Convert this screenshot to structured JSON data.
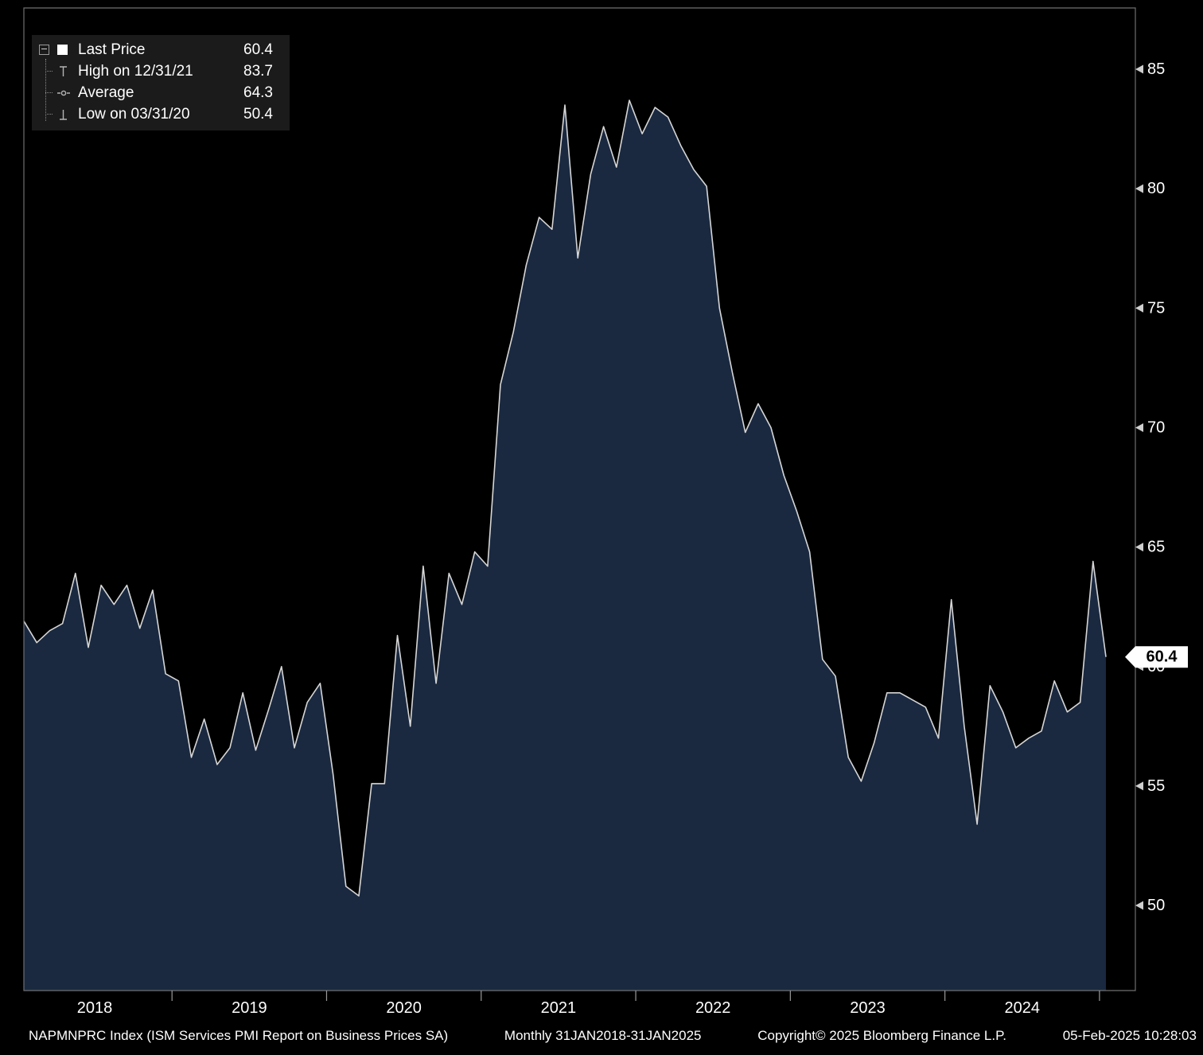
{
  "window": {
    "app": "Bloomberg Terminal chart",
    "security": "NAPMNPRC Index"
  },
  "legend": {
    "items": [
      {
        "marker": "last-price-square",
        "label": "Last Price",
        "value": "60.4"
      },
      {
        "marker": "high-tick",
        "label": "High on 12/31/21",
        "value": "83.7"
      },
      {
        "marker": "average-line",
        "label": "Average",
        "value": "64.3"
      },
      {
        "marker": "low-tick",
        "label": "Low on 03/31/20",
        "value": "50.4"
      }
    ]
  },
  "chart_data": {
    "type": "area",
    "title": "NAPMNPRC Index (ISM Services PMI Report on Business Prices SA)",
    "frequency": "Monthly",
    "x_start": "2018-01",
    "x_end": "2025-01",
    "xlabel": "",
    "ylabel": "",
    "ylim": [
      46.4,
      87.6
    ],
    "yticks": [
      50,
      55,
      60,
      65,
      70,
      75,
      80,
      85
    ],
    "year_labels": [
      "2018",
      "2019",
      "2020",
      "2021",
      "2022",
      "2023",
      "2024"
    ],
    "grid": false,
    "legend_position": "top-left",
    "last_price": 60.4,
    "high": {
      "date": "12/31/21",
      "value": 83.7
    },
    "low": {
      "date": "03/31/20",
      "value": 50.4
    },
    "average": 64.3,
    "values": [
      61.9,
      61.0,
      61.5,
      61.8,
      63.9,
      60.8,
      63.4,
      62.6,
      63.4,
      61.6,
      63.2,
      59.7,
      59.4,
      56.2,
      57.8,
      55.9,
      56.6,
      58.9,
      56.5,
      58.2,
      60.0,
      56.6,
      58.5,
      59.3,
      55.5,
      50.8,
      50.4,
      55.1,
      55.1,
      61.3,
      57.5,
      64.2,
      59.3,
      63.9,
      62.6,
      64.8,
      64.2,
      71.8,
      74.0,
      76.8,
      78.8,
      78.3,
      83.5,
      77.1,
      80.6,
      82.6,
      80.9,
      83.7,
      82.3,
      83.4,
      83.0,
      81.8,
      80.8,
      80.1,
      75.0,
      72.3,
      69.8,
      71.0,
      70.0,
      68.0,
      66.5,
      64.8,
      60.3,
      59.6,
      56.2,
      55.2,
      56.8,
      58.9,
      58.9,
      58.6,
      58.3,
      57.0,
      62.8,
      57.5,
      53.4,
      59.2,
      58.1,
      56.6,
      57.0,
      57.3,
      59.4,
      58.1,
      58.5,
      64.4,
      60.4
    ],
    "colors": {
      "background": "#000000",
      "area_fill": "#1a2940",
      "line": "#d6d6d6",
      "frame": "#6f6f6f",
      "tick_text": "#ffffff",
      "last_price_tag_bg": "#ffffff",
      "last_price_tag_text": "#000000"
    }
  },
  "footer": {
    "security": "NAPMNPRC Index (ISM Services PMI Report on Business Prices SA)",
    "frequency_range": "Monthly 31JAN2018-31JAN2025",
    "copyright": "Copyright© 2025 Bloomberg Finance L.P.",
    "timestamp": "05-Feb-2025 10:28:03"
  }
}
